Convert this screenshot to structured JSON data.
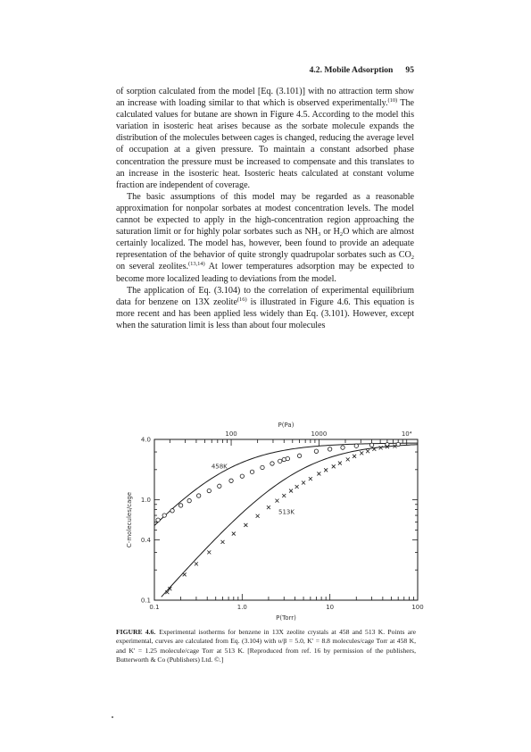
{
  "header": {
    "section": "4.2. Mobile Adsorption",
    "page": "95"
  },
  "paragraphs": {
    "p1": {
      "a": "of sorption calculated from the model [Eq. (3.101)] with no attraction term show an increase with loading similar to that which is observed experimentally.",
      "ref": "(10)",
      "b": " The calculated values for butane are shown in Figure 4.5. According to the model this variation in isosteric heat arises because as the sorbate molecule expands the distribution of the molecules between cages is changed, reducing the average level of occupation at a given pressure. To maintain a constant adsorbed phase concentration the pressure must be increased to compensate and this translates to an increase in the isosteric heat. Isosteric heats calculated at constant volume fraction are independent of coverage."
    },
    "p2": {
      "a": "The basic assumptions of this model may be regarded as a reasonable approximation for nonpolar sorbates at modest concentration levels. The model cannot be expected to apply in the high-concentration region approaching the saturation limit or for highly polar sorbates such as NH",
      "sub1": "3",
      "b": " or H",
      "sub2": "2",
      "c": "O which are almost certainly localized. The model has, however, been found to provide an adequate representation of the behavior of quite strongly quadrupolar sorbates such as CO",
      "sub3": "2",
      "d": " on several zeolites.",
      "ref": "(13,14)",
      "e": " At lower temperatures adsorption may be expected to become more localized leading to deviations from the model."
    },
    "p3": {
      "a": "The application of Eq. (3.104) to the correlation of experimental equilibrium data for benzene on 13X zeolite",
      "ref": "(16)",
      "b": " is illustrated in Figure 4.6. This equation is more recent and has been applied less widely than Eq. (3.101). However, except when the saturation limit is less than about four molecules"
    }
  },
  "caption": {
    "label": "FIGURE 4.6.",
    "text": "Experimental isotherms for benzene in 13X zeolite crystals at 458 and 513 K. Points are experimental, curves are calculated from Eq. (3.104) with υ/β = 5.0, K′ = 8.8 molecules/cage Torr at 458 K, and K′ = 1.25 molecule/cage Torr at 513 K. [Reproduced from ref. 16 by permission of the publishers, Butterworth & Co (Publishers) Ltd. ©.]"
  },
  "chart_data": {
    "type": "scatter",
    "x_scale": "log",
    "y_scale": "log",
    "xlabel": "P(Torr)",
    "ylabel": "C-molecules/cage",
    "top_xlabel": "P(Pa)",
    "xlim": [
      0.1,
      100
    ],
    "ylim": [
      0.1,
      4.0
    ],
    "x_ticks": [
      {
        "value": 0.1,
        "label": "0.1"
      },
      {
        "value": 1,
        "label": "1.0"
      },
      {
        "value": 10,
        "label": "10"
      },
      {
        "value": 100,
        "label": "100"
      }
    ],
    "top_ticks": [
      {
        "value": 100,
        "label": "100"
      },
      {
        "value": 1000,
        "label": "1000"
      },
      {
        "value": 10000,
        "label": "10⁴"
      }
    ],
    "y_ticks": [
      {
        "value": 0.1,
        "label": "0.1"
      },
      {
        "value": 0.4,
        "label": "0.4"
      },
      {
        "value": 1.0,
        "label": "1.0"
      },
      {
        "value": 4.0,
        "label": "4.0"
      }
    ],
    "grid": false,
    "series": [
      {
        "name": "458K",
        "marker": "circle",
        "curve_K": 8.8,
        "curve_vb": 5.0,
        "points": [
          [
            0.11,
            0.63
          ],
          [
            0.13,
            0.7
          ],
          [
            0.16,
            0.78
          ],
          [
            0.2,
            0.88
          ],
          [
            0.25,
            0.98
          ],
          [
            0.32,
            1.1
          ],
          [
            0.42,
            1.23
          ],
          [
            0.55,
            1.37
          ],
          [
            0.75,
            1.55
          ],
          [
            1.0,
            1.72
          ],
          [
            1.3,
            1.9
          ],
          [
            1.7,
            2.1
          ],
          [
            2.2,
            2.3
          ],
          [
            2.7,
            2.43
          ],
          [
            3.0,
            2.52
          ],
          [
            3.3,
            2.57
          ],
          [
            4.5,
            2.75
          ],
          [
            7.0,
            3.05
          ],
          [
            10,
            3.2
          ],
          [
            14,
            3.32
          ],
          [
            20,
            3.45
          ],
          [
            30,
            3.52
          ],
          [
            45,
            3.55
          ],
          [
            60,
            3.57
          ]
        ]
      },
      {
        "name": "513K",
        "marker": "cross",
        "curve_K": 1.25,
        "curve_vb": 5.0,
        "points": [
          [
            0.14,
            0.12
          ],
          [
            0.15,
            0.13
          ],
          [
            0.22,
            0.18
          ],
          [
            0.3,
            0.23
          ],
          [
            0.42,
            0.3
          ],
          [
            0.6,
            0.38
          ],
          [
            0.8,
            0.46
          ],
          [
            1.1,
            0.56
          ],
          [
            1.5,
            0.69
          ],
          [
            2.0,
            0.84
          ],
          [
            2.5,
            0.98
          ],
          [
            3.0,
            1.1
          ],
          [
            3.6,
            1.23
          ],
          [
            4.2,
            1.35
          ],
          [
            5.0,
            1.48
          ],
          [
            6.0,
            1.62
          ],
          [
            7.5,
            1.82
          ],
          [
            9,
            1.98
          ],
          [
            11,
            2.15
          ],
          [
            13,
            2.32
          ],
          [
            16,
            2.53
          ],
          [
            19,
            2.72
          ],
          [
            23,
            2.92
          ],
          [
            27,
            3.05
          ],
          [
            32,
            3.2
          ],
          [
            38,
            3.3
          ],
          [
            45,
            3.38
          ],
          [
            55,
            3.42
          ]
        ]
      }
    ]
  },
  "colors": {
    "ink": "#1a1a1a",
    "paper": "#ffffff"
  }
}
